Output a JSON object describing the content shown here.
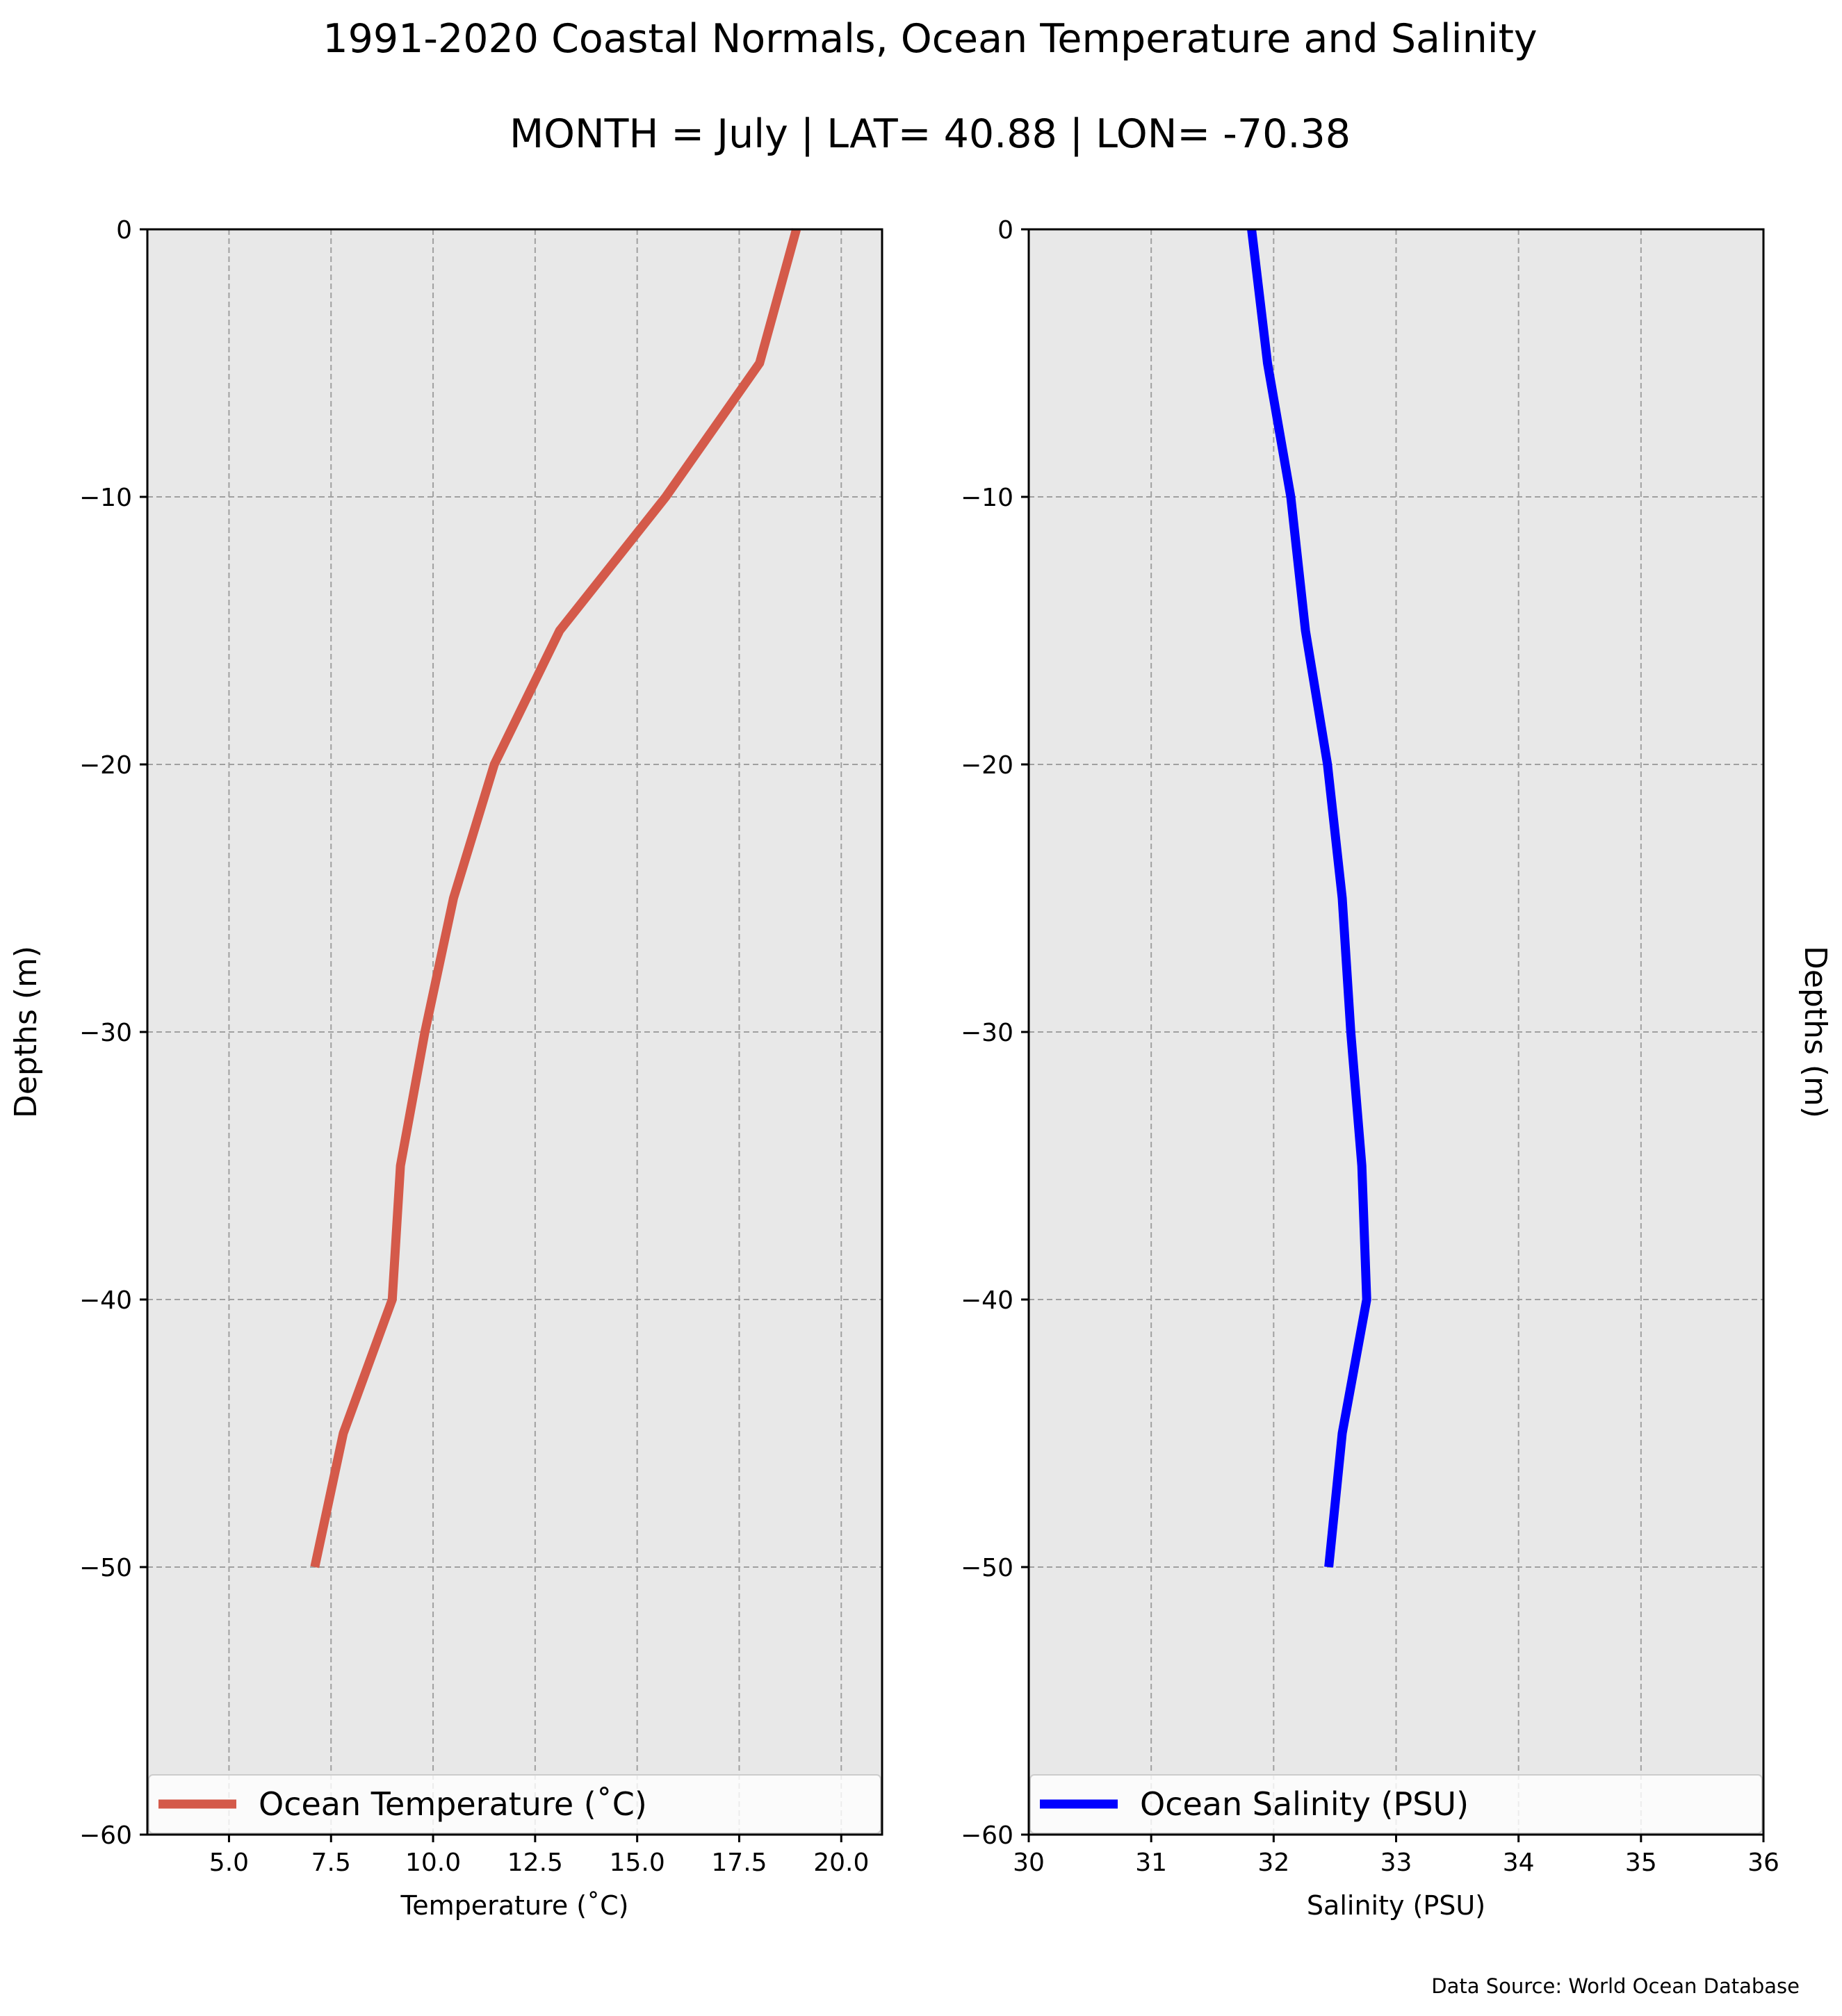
{
  "figure": {
    "title": "1991-2020 Coastal Normals, Ocean Temperature and Salinity",
    "subtitle": "MONTH = July | LAT= 40.88 | LON= -70.38",
    "source_note": "Data Source: World Ocean Database"
  },
  "chart_data": [
    {
      "type": "line",
      "series": [
        {
          "name": "Ocean Temperature ($^\\circ$C)",
          "legend_label": "Ocean Temperature (˚C)",
          "color": "#d45a4a",
          "x": [
            18.9,
            18.0,
            15.7,
            13.1,
            11.5,
            10.5,
            9.8,
            9.2,
            9.0,
            7.8,
            7.1
          ],
          "y": [
            0,
            -5,
            -10,
            -15,
            -20,
            -25,
            -30,
            -35,
            -40,
            -45,
            -50
          ]
        }
      ],
      "xlabel": "Temperature (˚C)",
      "ylabel": "Depths (m)",
      "xlim": [
        3.0,
        21.0
      ],
      "ylim": [
        -60,
        0
      ],
      "xticks": [
        5.0,
        7.5,
        10.0,
        12.5,
        15.0,
        17.5,
        20.0
      ],
      "xticklabels": [
        "5.0",
        "7.5",
        "10.0",
        "12.5",
        "15.0",
        "17.5",
        "20.0"
      ],
      "yticks": [
        0,
        -10,
        -20,
        -30,
        -40,
        -50,
        -60
      ],
      "yticklabels": [
        "0",
        "−10",
        "−20",
        "−30",
        "−40",
        "−50",
        "−60"
      ],
      "grid": true,
      "legend_position": "lower center",
      "background": "#e8e8e8"
    },
    {
      "type": "line",
      "series": [
        {
          "name": "Ocean Salinity (PSU)",
          "legend_label": "Ocean Salinity (PSU)",
          "color": "#0000ff",
          "x": [
            31.82,
            31.95,
            32.14,
            32.26,
            32.44,
            32.56,
            32.63,
            32.72,
            32.76,
            32.56,
            32.45
          ],
          "y": [
            0,
            -5,
            -10,
            -15,
            -20,
            -25,
            -30,
            -35,
            -40,
            -45,
            -50
          ]
        }
      ],
      "xlabel": "Salinity (PSU)",
      "ylabel": "Depths (m)",
      "xlim": [
        30,
        36
      ],
      "ylim": [
        -60,
        0
      ],
      "xticks": [
        30,
        31,
        32,
        33,
        34,
        35,
        36
      ],
      "xticklabels": [
        "30",
        "31",
        "32",
        "33",
        "34",
        "35",
        "36"
      ],
      "yticks": [
        0,
        -10,
        -20,
        -30,
        -40,
        -50,
        -60
      ],
      "yticklabels": [
        "0",
        "−10",
        "−20",
        "−30",
        "−40",
        "−50",
        "−60"
      ],
      "grid": true,
      "legend_position": "lower center",
      "background": "#e8e8e8"
    }
  ]
}
